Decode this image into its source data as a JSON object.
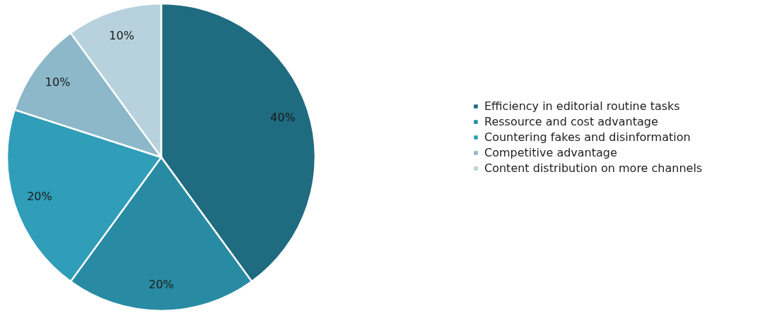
{
  "chart_data": {
    "type": "pie",
    "categories": [
      "Efficiency in editorial routine tasks",
      "Ressource and cost advantage",
      "Countering fakes and disinformation",
      "Competitive advantage",
      "Content distribution on more channels"
    ],
    "values": [
      40,
      20,
      20,
      10,
      10
    ],
    "value_labels": [
      "40%",
      "20%",
      "20%",
      "10%",
      "10%"
    ],
    "colors": [
      "#1f6b80",
      "#298ba3",
      "#309db9",
      "#8cb8c9",
      "#b7d2dc"
    ],
    "legend": "right"
  }
}
